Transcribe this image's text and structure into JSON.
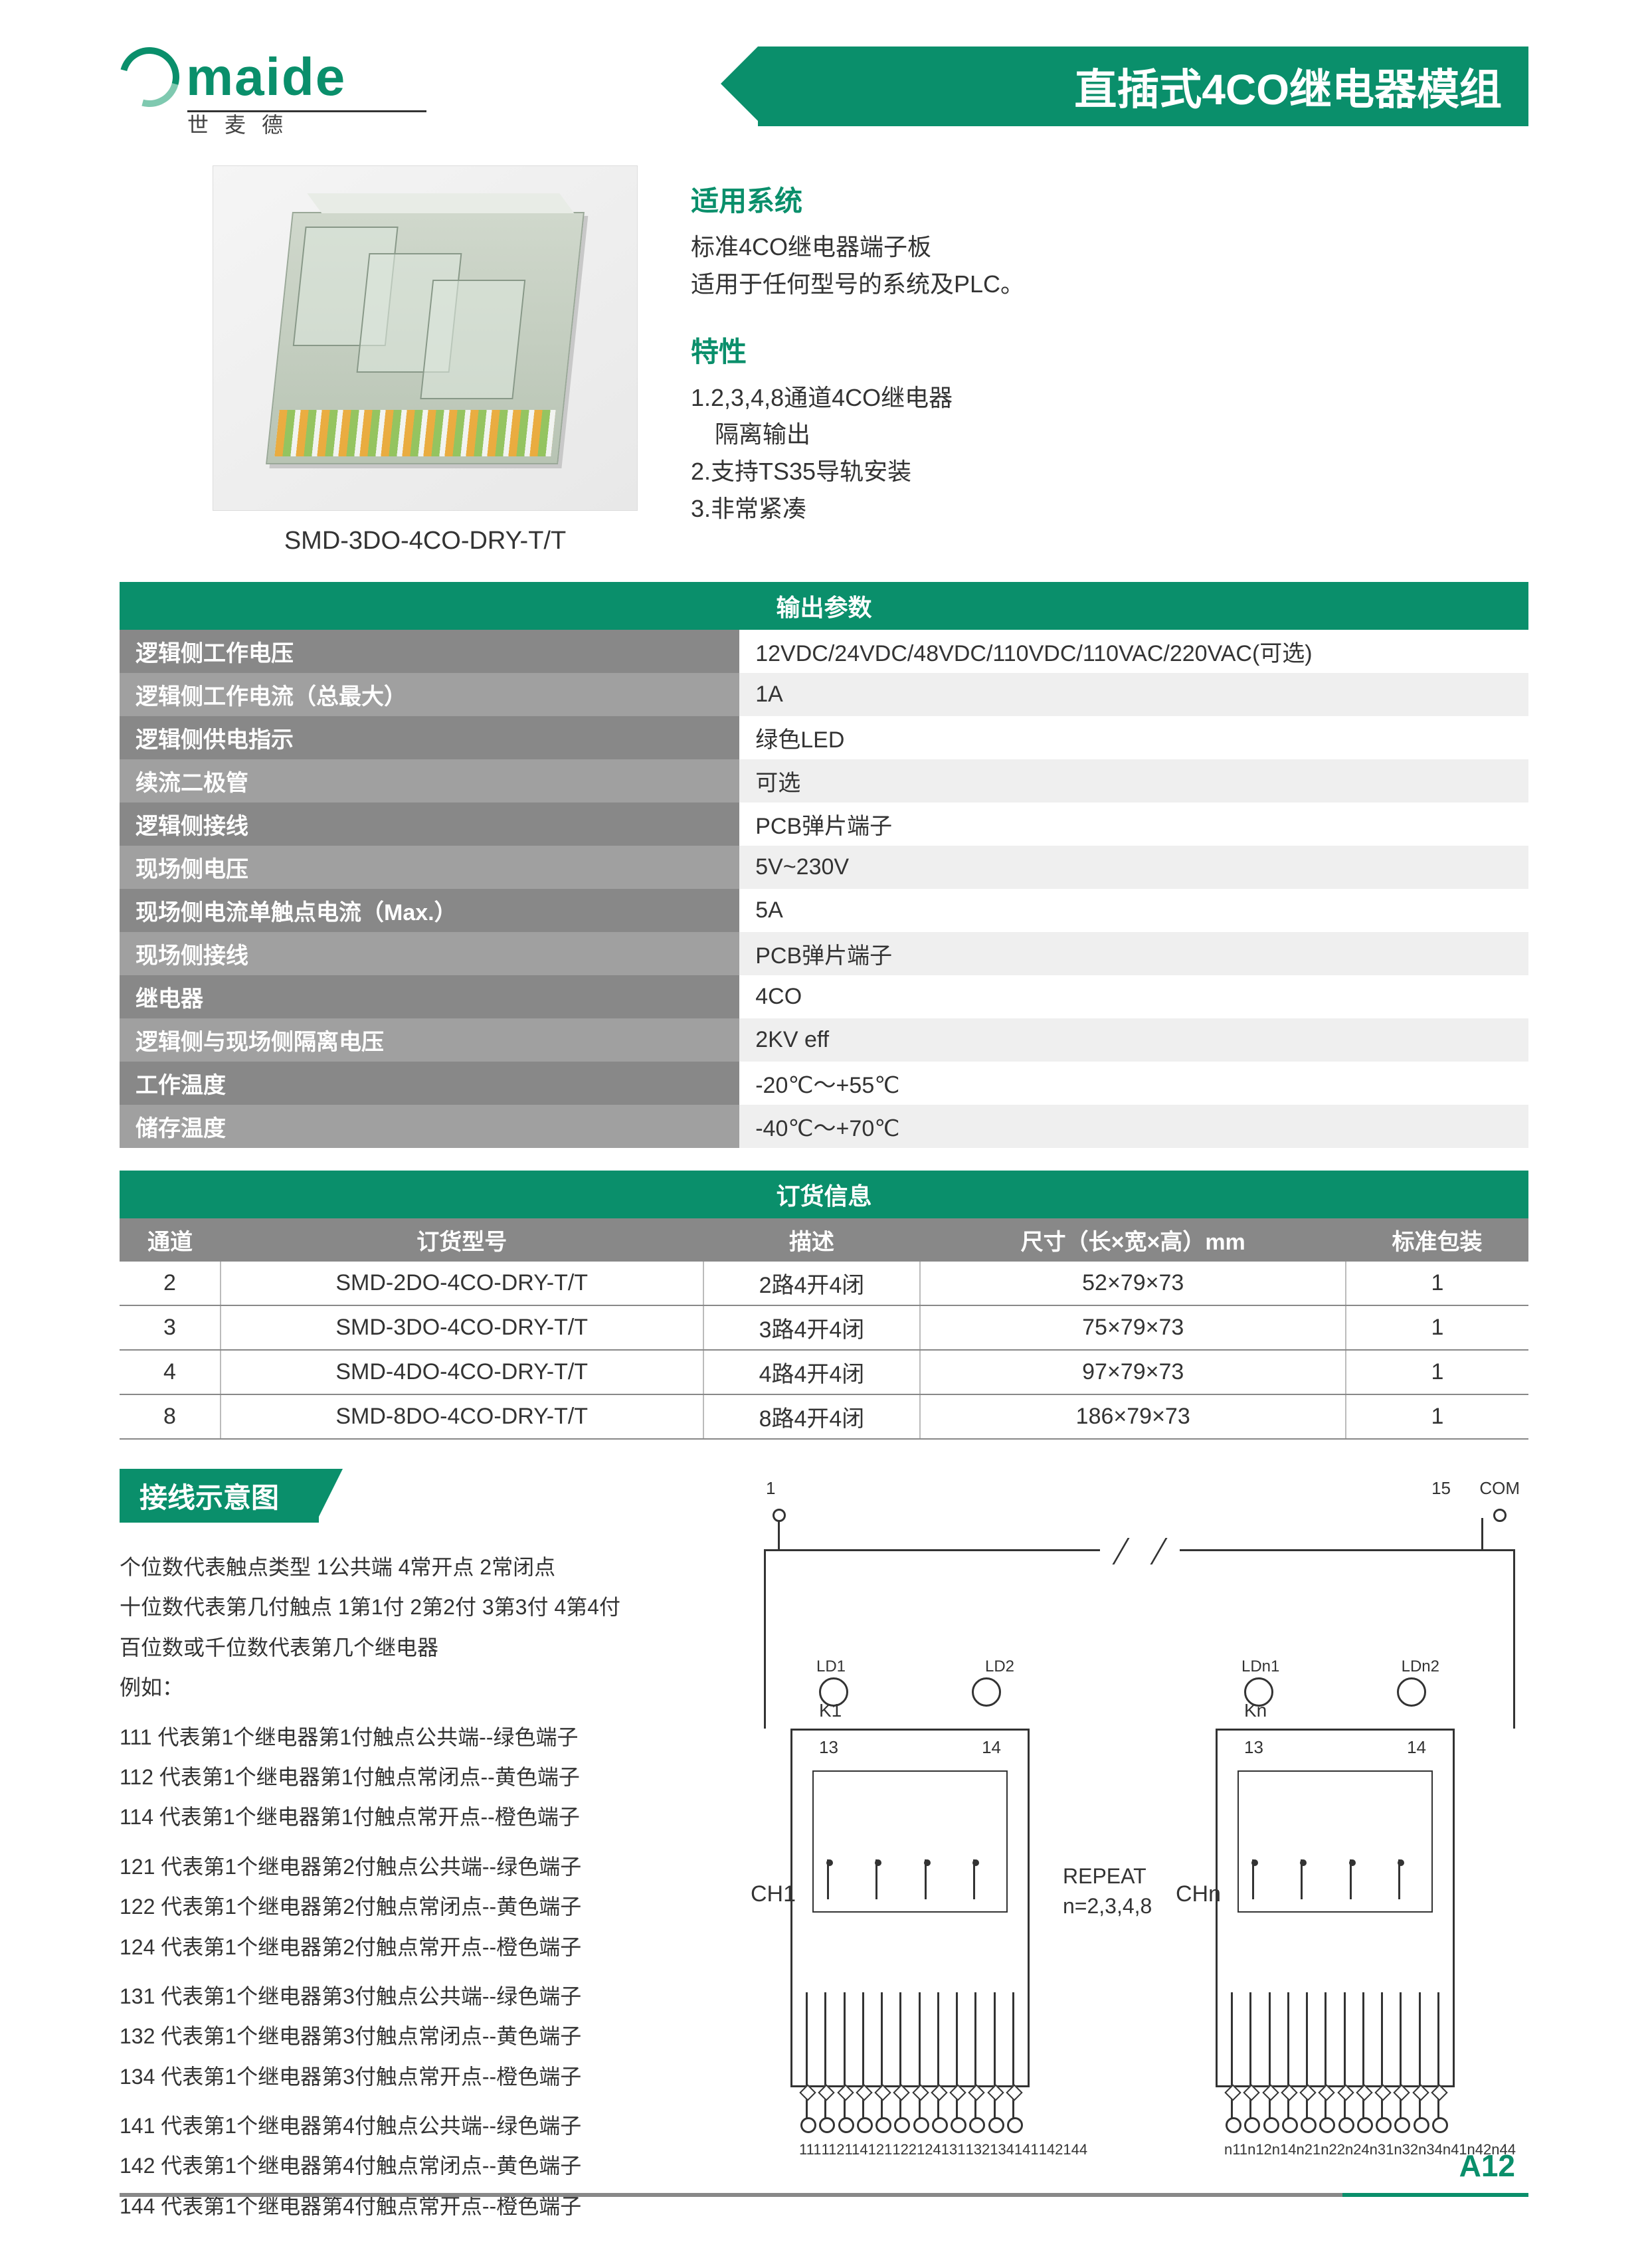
{
  "logo": {
    "brand": "maide",
    "sub": "世麦德"
  },
  "title": "直插式4CO继电器模组",
  "product_caption": "SMD-3DO-4CO-DRY-T/T",
  "info": {
    "system_heading": "适用系统",
    "system_lines": [
      "标准4CO继电器端子板",
      "适用于任何型号的系统及PLC。"
    ],
    "feature_heading": "特性",
    "feature_items": [
      "1.2,3,4,8通道4CO继电器",
      "　隔离输出",
      "2.支持TS35导轨安装",
      "3.非常紧凑"
    ]
  },
  "spec_table": {
    "header": "输出参数",
    "rows": [
      {
        "label": "逻辑侧工作电压",
        "value": "12VDC/24VDC/48VDC/110VDC/110VAC/220VAC(可选)"
      },
      {
        "label": "逻辑侧工作电流（总最大）",
        "value": "1A"
      },
      {
        "label": "逻辑侧供电指示",
        "value": "绿色LED"
      },
      {
        "label": "续流二极管",
        "value": "可选"
      },
      {
        "label": "逻辑侧接线",
        "value": "PCB弹片端子"
      },
      {
        "label": "现场侧电压",
        "value": "5V~230V"
      },
      {
        "label": "现场侧电流单触点电流（Max.）",
        "value": "5A"
      },
      {
        "label": "现场侧接线",
        "value": "PCB弹片端子"
      },
      {
        "label": "继电器",
        "value": "4CO"
      },
      {
        "label": "逻辑侧与现场侧隔离电压",
        "value": "2KV eff"
      },
      {
        "label": "工作温度",
        "value": "-20℃～+55℃"
      },
      {
        "label": "储存温度",
        "value": "-40℃～+70℃"
      }
    ]
  },
  "order_table": {
    "header": "订货信息",
    "columns": [
      "通道",
      "订货型号",
      "描述",
      "尺寸（长×宽×高）mm",
      "标准包装"
    ],
    "rows": [
      [
        "2",
        "SMD-2DO-4CO-DRY-T/T",
        "2路4开4闭",
        "52×79×73",
        "1"
      ],
      [
        "3",
        "SMD-3DO-4CO-DRY-T/T",
        "3路4开4闭",
        "75×79×73",
        "1"
      ],
      [
        "4",
        "SMD-4DO-4CO-DRY-T/T",
        "4路4开4闭",
        "97×79×73",
        "1"
      ],
      [
        "8",
        "SMD-8DO-4CO-DRY-T/T",
        "8路4开4闭",
        "186×79×73",
        "1"
      ]
    ]
  },
  "wiring": {
    "heading": "接线示意图",
    "intro": [
      "个位数代表触点类型 1公共端  4常开点  2常闭点",
      "十位数代表第几付触点 1第1付  2第2付  3第3付  4第4付",
      "百位数或千位数代表第几个继电器",
      "例如："
    ],
    "groups": [
      [
        "111 代表第1个继电器第1付触点公共端--绿色端子",
        "112 代表第1个继电器第1付触点常闭点--黄色端子",
        "114 代表第1个继电器第1付触点常开点--橙色端子"
      ],
      [
        "121 代表第1个继电器第2付触点公共端--绿色端子",
        "122 代表第1个继电器第2付触点常闭点--黄色端子",
        "124 代表第1个继电器第2付触点常开点--橙色端子"
      ],
      [
        "131 代表第1个继电器第3付触点公共端--绿色端子",
        "132 代表第1个继电器第3付触点常闭点--黄色端子",
        "134 代表第1个继电器第3付触点常开点--橙色端子"
      ],
      [
        "141 代表第1个继电器第4付触点公共端--绿色端子",
        "142 代表第1个继电器第4付触点常闭点--黄色端子",
        "144 代表第1个继电器第4付触点常开点--橙色端子"
      ]
    ]
  },
  "diagram": {
    "pin_left_top": "1",
    "pin_right_top": "15",
    "com": "COM",
    "k1": "K1",
    "kn": "Kn",
    "ld1": "LD1",
    "ld2": "LD2",
    "ldn1": "LDn1",
    "ldn2": "LDn2",
    "t13": "13",
    "t14": "14",
    "ch1": "CH1",
    "chn": "CHn",
    "repeat1": "REPEAT",
    "repeat2": "n=2,3,4,8",
    "bottom1": [
      "111",
      "112",
      "114",
      "121",
      "122",
      "124",
      "131",
      "132",
      "134",
      "141",
      "142",
      "144"
    ],
    "bottom2": [
      "n11",
      "n12",
      "n14",
      "n21",
      "n22",
      "n24",
      "n31",
      "n32",
      "n34",
      "n41",
      "n42",
      "n44"
    ]
  },
  "page_num": "A12",
  "colors": {
    "brand": "#0a8f6b",
    "grey": "#888888",
    "text": "#333333"
  }
}
